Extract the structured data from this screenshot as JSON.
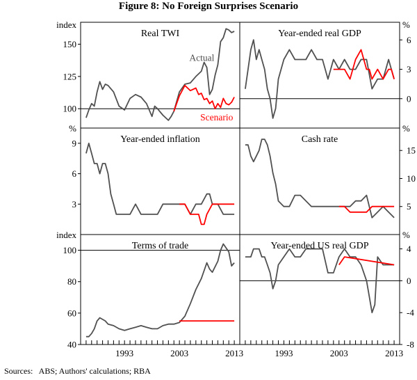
{
  "page": {
    "title": "Figure 8: No Foreign Surprises Scenario",
    "sources": "Sources:   ABS; Authors' calculations; RBA"
  },
  "colors": {
    "actual": "#505050",
    "scenario": "#ff0000",
    "axis": "#000000"
  },
  "chart_data": [
    {
      "type": "line",
      "title": "Real TWI",
      "unit_left": "index",
      "unit_right": "",
      "ylim": [
        85,
        167
      ],
      "yticks": [
        100,
        125,
        150
      ],
      "zero_line": 100,
      "tick_side": "left",
      "annotations": [
        {
          "text": "Actual",
          "x": 2004.8,
          "y": 137,
          "color": "actual"
        },
        {
          "text": "Scenario",
          "x": 2006.8,
          "y": 91,
          "color": "scenario"
        }
      ],
      "series": [
        {
          "name": "Actual",
          "role": "actual",
          "x": [
            1986,
            1986.5,
            1987,
            1987.5,
            1988,
            1988.5,
            1989,
            1989.5,
            1990,
            1991,
            1992,
            1993,
            1994,
            1995,
            1996,
            1997,
            1998,
            1998.5,
            1999,
            2000,
            2001,
            2001.5,
            2002,
            2003,
            2004,
            2005,
            2006,
            2007,
            2007.5,
            2008,
            2008.5,
            2009,
            2009.5,
            2010,
            2010.5,
            2011,
            2011.5,
            2012,
            2012.5,
            2013
          ],
          "y": [
            93,
            99,
            104,
            102,
            113,
            121,
            115,
            119,
            118,
            113,
            102,
            99,
            108,
            111,
            109,
            104,
            94,
            102,
            100,
            95,
            91,
            94,
            98,
            113,
            119,
            120,
            125,
            129,
            136,
            132,
            111,
            115,
            126,
            134,
            152,
            155,
            162,
            161,
            159,
            160
          ]
        },
        {
          "name": "Scenario",
          "role": "scenario",
          "x": [
            2002,
            2003,
            2004,
            2005,
            2006,
            2006.5,
            2007,
            2007.5,
            2008,
            2008.5,
            2009,
            2009.5,
            2010,
            2010.5,
            2011,
            2011.5,
            2012,
            2012.5,
            2013
          ],
          "y": [
            98,
            110,
            118,
            114,
            116,
            111,
            112,
            107,
            108,
            104,
            106,
            100,
            104,
            101,
            108,
            104,
            103,
            105,
            109
          ]
        }
      ]
    },
    {
      "type": "line",
      "title": "Year-ended real GDP",
      "unit_left": "",
      "unit_right": "%",
      "ylim": [
        -3,
        7.8
      ],
      "yticks": [
        0,
        3,
        6
      ],
      "zero_line": 0,
      "tick_side": "right",
      "series": [
        {
          "name": "Actual",
          "role": "actual",
          "x": [
            1986,
            1986.5,
            1987,
            1987.5,
            1988,
            1988.5,
            1989,
            1989.5,
            1990,
            1990.5,
            1991,
            1991.5,
            1992,
            1993,
            1994,
            1995,
            1996,
            1997,
            1998,
            1999,
            2000,
            2001,
            2002,
            2003,
            2004,
            2005,
            2006,
            2007,
            2008,
            2009,
            2010,
            2011,
            2012,
            2013
          ],
          "y": [
            1,
            3,
            5,
            6,
            4,
            5,
            4,
            3,
            1,
            0,
            -2,
            -1,
            2,
            4,
            5,
            4,
            4,
            4,
            5,
            4,
            4,
            2,
            4,
            3,
            4,
            3,
            3,
            4,
            4,
            1,
            2,
            2,
            4,
            2
          ]
        },
        {
          "name": "Scenario",
          "role": "scenario",
          "x": [
            2002,
            2003,
            2004,
            2005,
            2006,
            2007,
            2008,
            2008.5,
            2009,
            2010,
            2011,
            2012,
            2012.5,
            2013
          ],
          "y": [
            3,
            3,
            3,
            2,
            4,
            5,
            3,
            3,
            2,
            3,
            2,
            3,
            3,
            2
          ]
        }
      ]
    },
    {
      "type": "line",
      "title": "Year-ended inflation",
      "unit_left": "%",
      "unit_right": "",
      "ylim": [
        0,
        10.5
      ],
      "yticks": [
        3,
        6,
        9
      ],
      "zero_line": null,
      "tick_side": "left",
      "series": [
        {
          "name": "Actual",
          "role": "actual",
          "x": [
            1986,
            1986.5,
            1987,
            1987.5,
            1988,
            1988.5,
            1989,
            1989.5,
            1990,
            1990.5,
            1991,
            1991.5,
            1992,
            1993,
            1994,
            1995,
            1996,
            1997,
            1998,
            1999,
            2000,
            2001,
            2002,
            2003,
            2004,
            2005,
            2006,
            2007,
            2008,
            2008.5,
            2009,
            2010,
            2011,
            2012,
            2013
          ],
          "y": [
            8,
            9,
            8,
            7,
            7,
            6,
            7,
            7,
            6,
            4,
            3,
            2,
            2,
            2,
            2,
            3,
            2,
            2,
            2,
            2,
            3,
            3,
            3,
            3,
            3,
            2,
            3,
            3,
            4,
            4,
            3,
            3,
            2,
            2,
            2
          ]
        },
        {
          "name": "Scenario",
          "role": "scenario",
          "x": [
            2003,
            2004,
            2005,
            2006,
            2006.5,
            2007,
            2007.5,
            2008,
            2009,
            2010,
            2011,
            2012,
            2013
          ],
          "y": [
            3,
            3,
            2,
            2,
            2,
            1,
            1,
            2,
            3,
            3,
            3,
            3,
            3
          ]
        }
      ]
    },
    {
      "type": "line",
      "title": "Cash rate",
      "unit_left": "",
      "unit_right": "%",
      "ylim": [
        0,
        19
      ],
      "yticks": [
        5,
        10,
        15
      ],
      "zero_line": null,
      "tick_side": "right",
      "series": [
        {
          "name": "Actual",
          "role": "actual",
          "x": [
            1986,
            1986.5,
            1987,
            1987.5,
            1988,
            1988.5,
            1989,
            1989.5,
            1990,
            1990.5,
            1991,
            1991.5,
            1992,
            1993,
            1994,
            1995,
            1996,
            1997,
            1998,
            1999,
            2000,
            2001,
            2002,
            2003,
            2004,
            2005,
            2006,
            2007,
            2008,
            2009,
            2010,
            2011,
            2012,
            2013
          ],
          "y": [
            16,
            16,
            14,
            13,
            14,
            15,
            17,
            17,
            16,
            14,
            11,
            9,
            6,
            5,
            5,
            7,
            7,
            6,
            5,
            5,
            5,
            5,
            5,
            5,
            5,
            5,
            6,
            6,
            7,
            3,
            4,
            5,
            4,
            3
          ]
        },
        {
          "name": "Scenario",
          "role": "scenario",
          "x": [
            2003,
            2004,
            2005,
            2006,
            2007,
            2008,
            2009,
            2010,
            2011,
            2012,
            2013
          ],
          "y": [
            5,
            5,
            4,
            4,
            4,
            4,
            5,
            5,
            5,
            5,
            5
          ]
        }
      ]
    },
    {
      "type": "line",
      "title": "Terms of trade",
      "unit_left": "index",
      "unit_right": "",
      "ylim": [
        40,
        110
      ],
      "yticks": [
        40,
        60,
        80,
        100
      ],
      "zero_line": 100,
      "tick_side": "left",
      "series": [
        {
          "name": "Actual",
          "role": "actual",
          "x": [
            1986,
            1986.5,
            1987,
            1987.5,
            1988,
            1988.5,
            1989,
            1989.5,
            1990,
            1991,
            1992,
            1993,
            1994,
            1995,
            1996,
            1997,
            1998,
            1999,
            2000,
            2001,
            2002,
            2003,
            2004,
            2005,
            2006,
            2007,
            2008,
            2008.5,
            2009,
            2010,
            2010.5,
            2011,
            2012,
            2012.5,
            2013
          ],
          "y": [
            45,
            45,
            47,
            50,
            55,
            57,
            56,
            55,
            53,
            52,
            50,
            49,
            50,
            51,
            52,
            51,
            50,
            50,
            52,
            53,
            53,
            54,
            58,
            66,
            75,
            82,
            92,
            88,
            86,
            93,
            100,
            104,
            99,
            90,
            92
          ]
        },
        {
          "name": "Scenario",
          "role": "scenario",
          "x": [
            2003,
            2013
          ],
          "y": [
            55,
            55
          ]
        }
      ]
    },
    {
      "type": "line",
      "title": "Year-ended US real GDP",
      "unit_left": "",
      "unit_right": "%",
      "ylim": [
        -8,
        5.8
      ],
      "yticks": [
        -8,
        -4,
        0,
        4
      ],
      "zero_line": 0,
      "tick_side": "right",
      "series": [
        {
          "name": "Actual",
          "role": "actual",
          "x": [
            1986,
            1986.5,
            1987,
            1987.5,
            1988,
            1988.5,
            1989,
            1989.5,
            1990,
            1990.5,
            1991,
            1991.5,
            1992,
            1993,
            1994,
            1995,
            1996,
            1997,
            1998,
            1999,
            2000,
            2001,
            2002,
            2003,
            2004,
            2005,
            2006,
            2007,
            2008,
            2008.5,
            2009,
            2009.5,
            2010,
            2011,
            2012,
            2013
          ],
          "y": [
            3,
            3,
            3,
            4,
            4,
            4,
            3,
            3,
            2,
            1,
            -1,
            0,
            2,
            3,
            4,
            3,
            3,
            4,
            4,
            4,
            4,
            1,
            1,
            3,
            4,
            3,
            3,
            2,
            0,
            -2,
            -4,
            -3,
            3,
            2,
            2,
            2
          ]
        },
        {
          "name": "Scenario",
          "role": "scenario",
          "x": [
            2003,
            2004,
            2013
          ],
          "y": [
            2,
            3,
            2
          ]
        }
      ]
    }
  ],
  "x_axis": {
    "range": [
      1985,
      2014
    ],
    "tick_labels": [
      "1993",
      "2003",
      "2013"
    ],
    "label_years": [
      1993,
      2003,
      2013
    ]
  }
}
